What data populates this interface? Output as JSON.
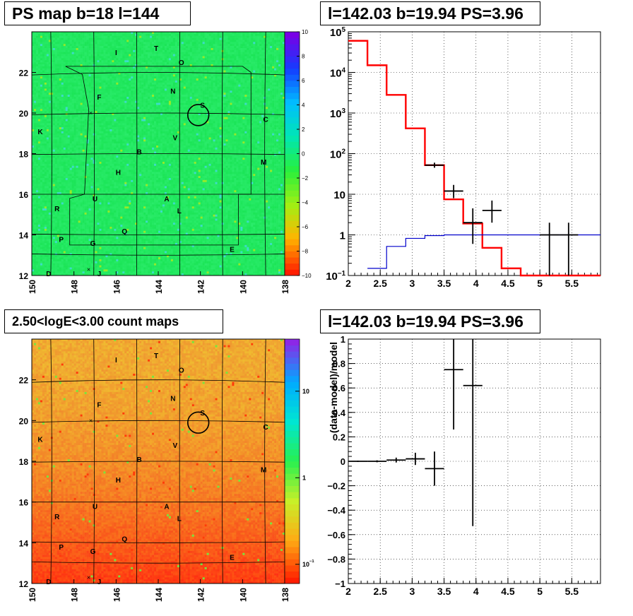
{
  "titles": {
    "ps_map": "PS map b=18 l=144",
    "spectrum": "l=142.03 b=19.94 PS=3.96",
    "count_maps": "2.50<logE<3.00 count maps",
    "residual": "l=142.03 b=19.94 PS=3.96"
  },
  "chart_data": [
    {
      "type": "heatmap",
      "title": "PS map b=18 l=144",
      "xlim": [
        150,
        138
      ],
      "ylim": [
        12,
        24
      ],
      "x_ticks": [
        "150",
        "148",
        "146",
        "144",
        "142",
        "140",
        "138"
      ],
      "y_ticks": [
        "12",
        "14",
        "16",
        "18",
        "20",
        "22"
      ],
      "colorbar": {
        "range": [
          -10,
          10
        ],
        "ticks": [
          "10",
          "8",
          "6",
          "4",
          "2",
          "0",
          "−2",
          "−4",
          "−6",
          "−8",
          "−10"
        ]
      },
      "source_labels": [
        {
          "label": "I",
          "l": 146.0,
          "b": 23.0
        },
        {
          "label": "T",
          "l": 144.1,
          "b": 23.2
        },
        {
          "label": "O",
          "l": 142.9,
          "b": 22.5
        },
        {
          "label": "N",
          "l": 143.3,
          "b": 21.1
        },
        {
          "label": "S",
          "l": 141.9,
          "b": 20.4
        },
        {
          "label": "F",
          "l": 146.8,
          "b": 20.8
        },
        {
          "label": "C",
          "l": 138.9,
          "b": 19.7
        },
        {
          "label": "K",
          "l": 149.6,
          "b": 19.1
        },
        {
          "label": "V",
          "l": 143.2,
          "b": 18.8
        },
        {
          "label": "B",
          "l": 144.9,
          "b": 18.1
        },
        {
          "label": "M",
          "l": 139.0,
          "b": 17.6
        },
        {
          "label": "H",
          "l": 145.9,
          "b": 17.1
        },
        {
          "label": "U",
          "l": 147.0,
          "b": 15.8
        },
        {
          "label": "A",
          "l": 143.6,
          "b": 15.8
        },
        {
          "label": "R",
          "l": 148.8,
          "b": 15.3
        },
        {
          "label": "L",
          "l": 143.0,
          "b": 15.2
        },
        {
          "label": "Q",
          "l": 145.6,
          "b": 14.2
        },
        {
          "label": "P",
          "l": 148.6,
          "b": 13.8
        },
        {
          "label": "G",
          "l": 147.1,
          "b": 13.6
        },
        {
          "label": "E",
          "l": 140.5,
          "b": 13.3
        },
        {
          "label": "D",
          "l": 149.2,
          "b": 12.1
        },
        {
          "label": "J",
          "l": 146.8,
          "b": 12.1
        }
      ],
      "cross_markers": [
        {
          "l": 147.2,
          "b": 20.0
        },
        {
          "l": 147.3,
          "b": 12.3
        }
      ],
      "circle": {
        "l": 142.1,
        "b": 19.9,
        "r_deg": 0.5
      },
      "colors": {
        "base": "#22e860"
      }
    },
    {
      "type": "line",
      "title": "l=142.03 b=19.94 PS=3.96",
      "ylog": true,
      "xlim": [
        2.0,
        5.95
      ],
      "ylim": [
        0.1,
        100000
      ],
      "x_ticks": [
        "2",
        "2.5",
        "3",
        "3.5",
        "4",
        "4.5",
        "5",
        "5.5"
      ],
      "y_ticks": [
        {
          "v": 0.1,
          "base": "10",
          "exp": "−1"
        },
        {
          "v": 1,
          "base": "1",
          "exp": ""
        },
        {
          "v": 10,
          "base": "10",
          "exp": ""
        },
        {
          "v": 100,
          "base": "10",
          "exp": "2"
        },
        {
          "v": 1000,
          "base": "10",
          "exp": "3"
        },
        {
          "v": 10000,
          "base": "10",
          "exp": "4"
        },
        {
          "v": 100000,
          "base": "10",
          "exp": "5"
        }
      ],
      "series": [
        {
          "color": "#ff0000",
          "bins": [
            [
              2.0,
              2.3,
              60000
            ],
            [
              2.3,
              2.6,
              15000
            ],
            [
              2.6,
              2.9,
              2800
            ],
            [
              2.9,
              3.2,
              420
            ],
            [
              3.2,
              3.5,
              52
            ],
            [
              3.5,
              3.8,
              7.5
            ],
            [
              3.8,
              4.1,
              1.9
            ],
            [
              4.1,
              4.4,
              0.48
            ],
            [
              4.4,
              4.7,
              0.15
            ],
            [
              4.7,
              5.95,
              0.1
            ]
          ]
        },
        {
          "color": "#0000cc",
          "bins": [
            [
              2.3,
              2.6,
              0.15
            ],
            [
              2.6,
              2.9,
              0.52
            ],
            [
              2.9,
              3.2,
              0.82
            ],
            [
              3.2,
              3.5,
              0.96
            ],
            [
              3.5,
              3.8,
              1.0
            ],
            [
              3.8,
              5.95,
              1.0
            ]
          ]
        }
      ],
      "points": [
        {
          "x": 3.35,
          "y": 52,
          "xerr": 0.15,
          "ylo": 45,
          "yhi": 60
        },
        {
          "x": 3.65,
          "y": 12,
          "xerr": 0.15,
          "ylo": 8,
          "yhi": 17
        },
        {
          "x": 3.95,
          "y": 2.0,
          "xerr": 0.15,
          "ylo": 0.6,
          "yhi": 4.5
        },
        {
          "x": 4.25,
          "y": 4.0,
          "xerr": 0.15,
          "ylo": 2.0,
          "yhi": 7.0
        },
        {
          "x": 5.15,
          "y": 1.0,
          "xerr": 0.15,
          "ylo": 0.1,
          "yhi": 2.0
        },
        {
          "x": 5.45,
          "y": 1.0,
          "xerr": 0.15,
          "ylo": 0.1,
          "yhi": 2.0
        }
      ]
    },
    {
      "type": "heatmap",
      "title": "2.50<logE<3.00 count maps",
      "xlim": [
        150,
        138
      ],
      "ylim": [
        12,
        24
      ],
      "x_ticks": [
        "150",
        "148",
        "146",
        "144",
        "142",
        "140",
        "138"
      ],
      "y_ticks": [
        "12",
        "14",
        "16",
        "18",
        "20",
        "22"
      ],
      "colorbar": {
        "log": true,
        "ticks": [
          {
            "v": 10,
            "base": "10",
            "exp": ""
          },
          {
            "v": 1,
            "base": "1",
            "exp": ""
          },
          {
            "v": 0.1,
            "base": "10",
            "exp": "−1"
          }
        ]
      },
      "colors": {
        "top": "#f0aa30",
        "bottom": "#ff3a10"
      }
    },
    {
      "type": "scatter",
      "title": "l=142.03 b=19.94 PS=3.96",
      "ylabel": "(data-model)/model",
      "xlim": [
        2.0,
        5.95
      ],
      "ylim": [
        -1,
        1
      ],
      "x_ticks": [
        "2",
        "2.5",
        "3",
        "3.5",
        "4",
        "4.5",
        "5",
        "5.5"
      ],
      "y_ticks": [
        "1",
        "0.8",
        "0.6",
        "0.4",
        "0.2",
        "0",
        "−0.2",
        "−0.4",
        "−0.6",
        "−0.8",
        "−1"
      ],
      "points": [
        {
          "x": 2.15,
          "y": 0.0,
          "xerr": 0.15,
          "yerr": 0.005
        },
        {
          "x": 2.45,
          "y": 0.0,
          "xerr": 0.15,
          "yerr": 0.008
        },
        {
          "x": 2.75,
          "y": 0.01,
          "xerr": 0.15,
          "yerr": 0.02
        },
        {
          "x": 3.05,
          "y": 0.02,
          "xerr": 0.15,
          "yerr": 0.05
        },
        {
          "x": 3.35,
          "y": -0.06,
          "xerr": 0.15,
          "ylo": -0.2,
          "yhi": 0.08
        },
        {
          "x": 3.65,
          "y": 0.75,
          "xerr": 0.15,
          "ylo": 0.26,
          "yhi": 1.0
        },
        {
          "x": 3.95,
          "y": 0.62,
          "xerr": 0.15,
          "ylo": -0.53,
          "yhi": 1.0
        }
      ]
    }
  ]
}
